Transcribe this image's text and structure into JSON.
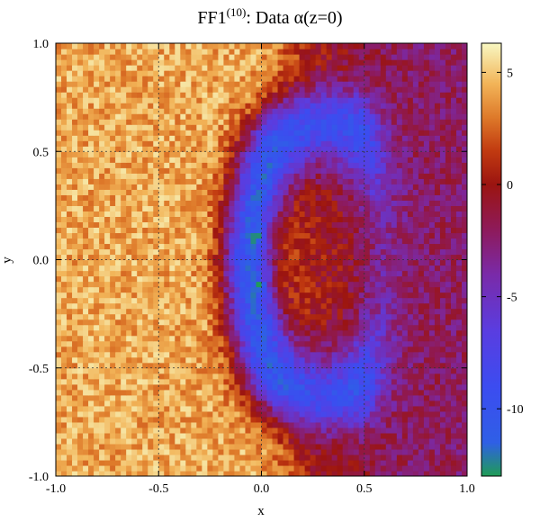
{
  "chart_data": {
    "type": "heatmap",
    "title": {
      "prefix": "FF1",
      "superscript": "(10)",
      "suffix": ": Data α(z=0)"
    },
    "xlabel": "x",
    "ylabel": "y",
    "xlim": [
      -1.0,
      1.0
    ],
    "ylim": [
      -1.0,
      1.0
    ],
    "xticks": [
      "-1.0",
      "-0.5",
      "0.0",
      "0.5",
      "1.0"
    ],
    "yticks": [
      "-1.0",
      "-0.5",
      "0.0",
      "0.5",
      "1.0"
    ],
    "grid": true,
    "colorbar": {
      "range": [
        -13,
        6.3
      ],
      "ticks": [
        {
          "value": 5,
          "label": "5"
        },
        {
          "value": 0,
          "label": "0"
        },
        {
          "value": -5,
          "label": "-5"
        },
        {
          "value": -10,
          "label": "-10"
        }
      ],
      "colormap": [
        {
          "value": -13,
          "color": "#1f9c55"
        },
        {
          "value": -11.5,
          "color": "#2f5fe6"
        },
        {
          "value": -9,
          "color": "#3c4cf0"
        },
        {
          "value": -6.5,
          "color": "#5a3de0"
        },
        {
          "value": -4,
          "color": "#7a2aa8"
        },
        {
          "value": -2,
          "color": "#8e1a5a"
        },
        {
          "value": 0,
          "color": "#9b1410"
        },
        {
          "value": 1.5,
          "color": "#c13a10"
        },
        {
          "value": 3,
          "color": "#de7a2a"
        },
        {
          "value": 4.5,
          "color": "#f2b458"
        },
        {
          "value": 6.3,
          "color": "#f8f8c2"
        }
      ]
    },
    "field_description": {
      "left_region_value": 4.2,
      "middle_region_value": 0.5,
      "blue_arc_value": -10.5,
      "right_region_value": -2.5,
      "green_spots": [
        {
          "x": -0.03,
          "y": 0.12,
          "value": -12.5
        },
        {
          "x": -0.02,
          "y": -0.12,
          "value": -12.5
        }
      ]
    }
  }
}
